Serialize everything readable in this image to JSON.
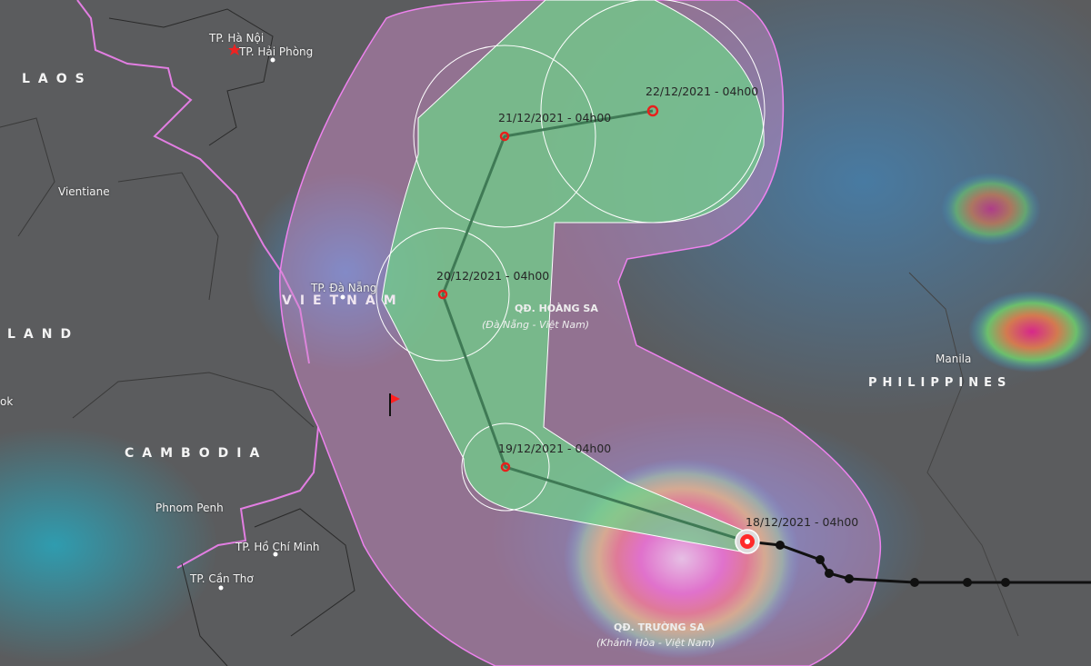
{
  "countries": {
    "laos": "LAOS",
    "vietnam": "VIETNAM",
    "thailand_partial": "LAND",
    "cambodia": "CAMBODIA",
    "philippines": "PHILIPPINES"
  },
  "cities": {
    "hanoi": "TP. Hà Nội",
    "haiphong": "TP. Hải Phòng",
    "vientiane": "Vientiane",
    "danang": "TP. Đà Nẵng",
    "bangkok_partial": "ok",
    "phnom_penh": "Phnom Penh",
    "hcm": "TP. Hồ Chí Minh",
    "cantho": "TP. Cần Thơ",
    "manila": "Manila"
  },
  "islands": {
    "hoangsa": "QĐ. HOÀNG SA",
    "hoangsa_sub": "(Đà Nẵng - Việt Nam)",
    "truongsa": "QĐ. TRƯỜNG SA",
    "truongsa_sub": "(Khánh Hòa - Việt Nam)"
  },
  "forecast_track": [
    {
      "label": "18/12/2021 - 04h00",
      "current": true
    },
    {
      "label": "19/12/2021 - 04h00"
    },
    {
      "label": "20/12/2021 - 04h00"
    },
    {
      "label": "21/12/2021 - 04h00"
    },
    {
      "label": "22/12/2021 - 04h00"
    }
  ],
  "colors": {
    "risk_zone": "#e07ee0",
    "cone": "#6fd08a",
    "track_line": "#3f7a55",
    "past_track": "#111111",
    "storm_icon": "#ff2a2a",
    "border": "#e27ee2"
  }
}
